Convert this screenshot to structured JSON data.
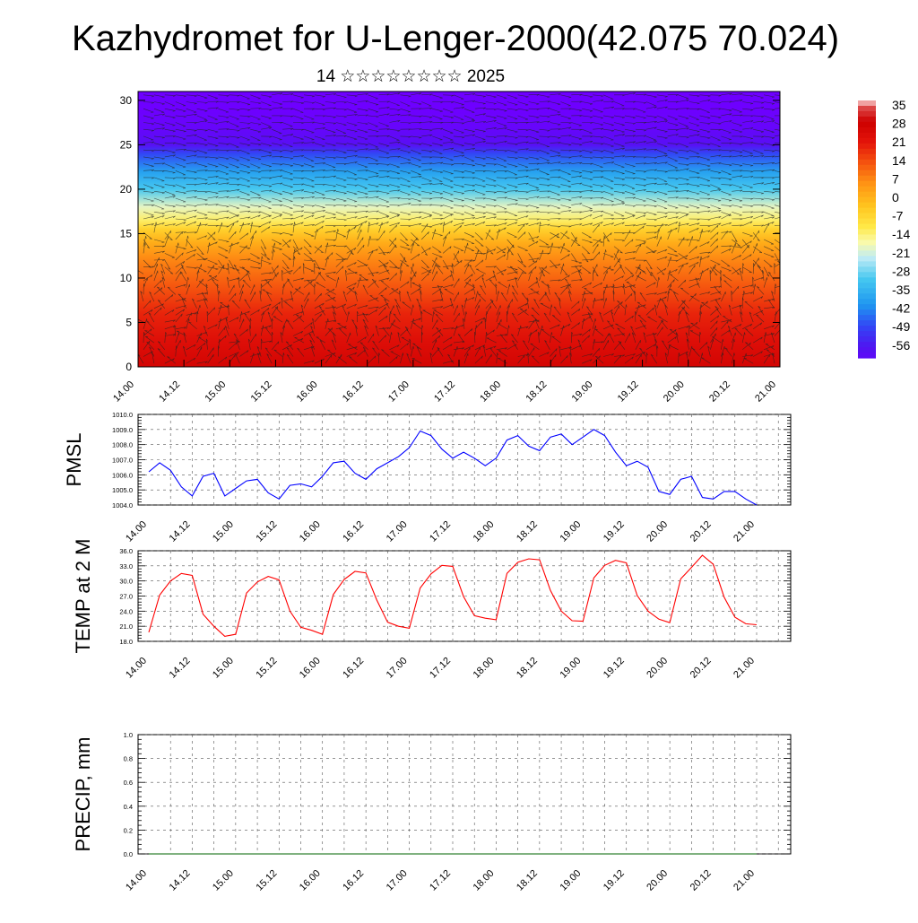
{
  "title": "Kazhydromet for U-Lenger-2000(42.075 70.024)",
  "subtitle": "14 ☆☆☆☆☆☆☆☆ 2025",
  "time_labels": [
    "14.00",
    "14.12",
    "15.00",
    "15.12",
    "16.00",
    "16.12",
    "17.00",
    "17.12",
    "18.00",
    "18.12",
    "19.00",
    "19.12",
    "20.00",
    "20.12",
    "21.00"
  ],
  "chart_data": [
    {
      "type": "heatmap",
      "name_hidden": "",
      "ylim": [
        0,
        31
      ],
      "yticks": [
        "0",
        "5",
        "10",
        "15",
        "20",
        "25",
        "30"
      ],
      "x_start": "14.00",
      "x_end": "21.00",
      "colorbar_labels": [
        "35",
        "28",
        "21",
        "14",
        "7",
        "0",
        "-7",
        "-14",
        "-21",
        "-28",
        "-35",
        "-42",
        "-49",
        "-56"
      ],
      "colorbar_range": [
        -60,
        38
      ],
      "profile_heights": [
        0,
        3,
        6,
        9,
        12,
        14,
        15.5,
        16.5,
        18,
        20,
        22,
        24,
        25,
        27,
        29,
        31
      ],
      "profile_values": [
        28,
        24,
        20,
        14,
        8,
        2,
        -5,
        -12,
        -18,
        -30,
        -38,
        -48,
        -58,
        -62,
        -64,
        -64
      ],
      "wind_vectors": true,
      "grid": false
    },
    {
      "type": "line",
      "ylabel": "PMSL",
      "ylim": [
        1004.0,
        1010.0
      ],
      "ytick_labels": [
        "1004.0",
        "1005.0",
        "1006.0",
        "1007.0",
        "1008.0",
        "1009.0",
        "1010.0"
      ],
      "color": "#0000ff",
      "grid": true,
      "x": [
        0,
        3,
        6,
        9,
        12,
        15,
        18,
        21,
        24,
        27,
        30,
        33,
        36,
        39,
        42,
        45,
        48,
        51,
        54,
        57,
        60,
        63,
        66,
        69,
        72,
        75,
        78,
        81,
        84,
        87,
        90,
        93,
        96,
        99,
        102,
        105,
        108,
        111,
        114,
        117,
        120,
        123,
        126,
        129,
        132,
        135,
        138,
        141,
        144,
        147,
        150,
        153,
        156,
        159,
        162,
        165,
        168
      ],
      "values": [
        1006.2,
        1006.8,
        1006.3,
        1005.2,
        1004.6,
        1005.9,
        1006.1,
        1004.6,
        1005.1,
        1005.6,
        1005.7,
        1004.8,
        1004.4,
        1005.3,
        1005.4,
        1005.2,
        1005.9,
        1006.8,
        1006.9,
        1006.1,
        1005.7,
        1006.4,
        1006.8,
        1007.2,
        1007.8,
        1008.9,
        1008.6,
        1007.7,
        1007.1,
        1007.5,
        1007.1,
        1006.6,
        1007.1,
        1008.3,
        1008.6,
        1007.9,
        1007.6,
        1008.5,
        1008.7,
        1008.0,
        1008.5,
        1009.0,
        1008.6,
        1007.5,
        1006.6,
        1006.9,
        1006.5,
        1004.9,
        1004.7,
        1005.7,
        1005.9,
        1004.5,
        1004.4,
        1004.9,
        1004.9,
        1004.4,
        1004.0
      ]
    },
    {
      "type": "line",
      "ylabel": "TEMP at 2 M",
      "ylim": [
        18.0,
        36.0
      ],
      "ytick_labels": [
        "18.0",
        "21.0",
        "24.0",
        "27.0",
        "30.0",
        "33.0",
        "36.0"
      ],
      "color": "#ff0000",
      "grid": true,
      "x": [
        0,
        3,
        6,
        9,
        12,
        15,
        18,
        21,
        24,
        27,
        30,
        33,
        36,
        39,
        42,
        45,
        48,
        51,
        54,
        57,
        60,
        63,
        66,
        69,
        72,
        75,
        78,
        81,
        84,
        87,
        90,
        93,
        96,
        99,
        102,
        105,
        108,
        111,
        114,
        117,
        120,
        123,
        126,
        129,
        132,
        135,
        138,
        141,
        144,
        147,
        150,
        153,
        156,
        159,
        162,
        165,
        168
      ],
      "values": [
        19.8,
        27.2,
        30.0,
        31.5,
        31.1,
        23.4,
        21.0,
        19.0,
        19.4,
        27.6,
        29.8,
        30.9,
        30.2,
        24.0,
        20.8,
        20.2,
        19.4,
        27.3,
        30.3,
        31.9,
        31.6,
        26.2,
        21.8,
        21.0,
        20.6,
        28.6,
        31.4,
        33.1,
        32.9,
        26.9,
        23.1,
        22.6,
        22.3,
        31.5,
        33.7,
        34.4,
        34.2,
        28.1,
        24.0,
        22.1,
        22.0,
        30.6,
        33.1,
        34.1,
        33.6,
        27.1,
        24.0,
        22.4,
        21.7,
        30.4,
        32.7,
        35.1,
        33.3,
        26.8,
        22.8,
        21.5,
        21.3
      ]
    },
    {
      "type": "line",
      "ylabel": "PRECIP, mm",
      "ylim": [
        0.0,
        1.0
      ],
      "ytick_labels": [
        "0.0",
        "0.2",
        "0.4",
        "0.6",
        "0.8",
        "1.0"
      ],
      "color": "#006400",
      "grid": true,
      "x": [
        0,
        168
      ],
      "values": [
        0.0,
        0.0
      ]
    }
  ]
}
